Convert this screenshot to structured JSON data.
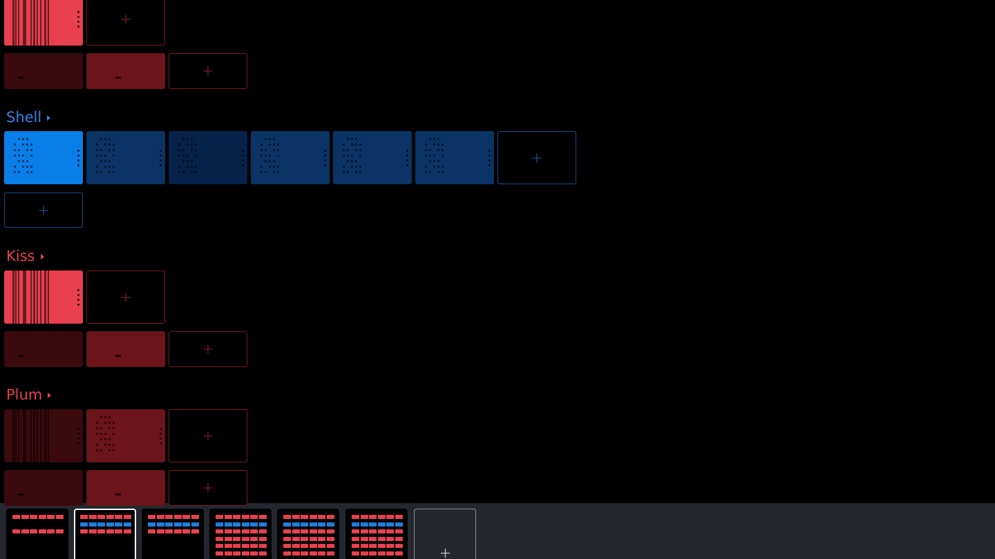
{
  "sections": [
    {
      "label": "Shell"
    },
    {
      "label": "Kiss"
    },
    {
      "label": "Plum"
    }
  ]
}
